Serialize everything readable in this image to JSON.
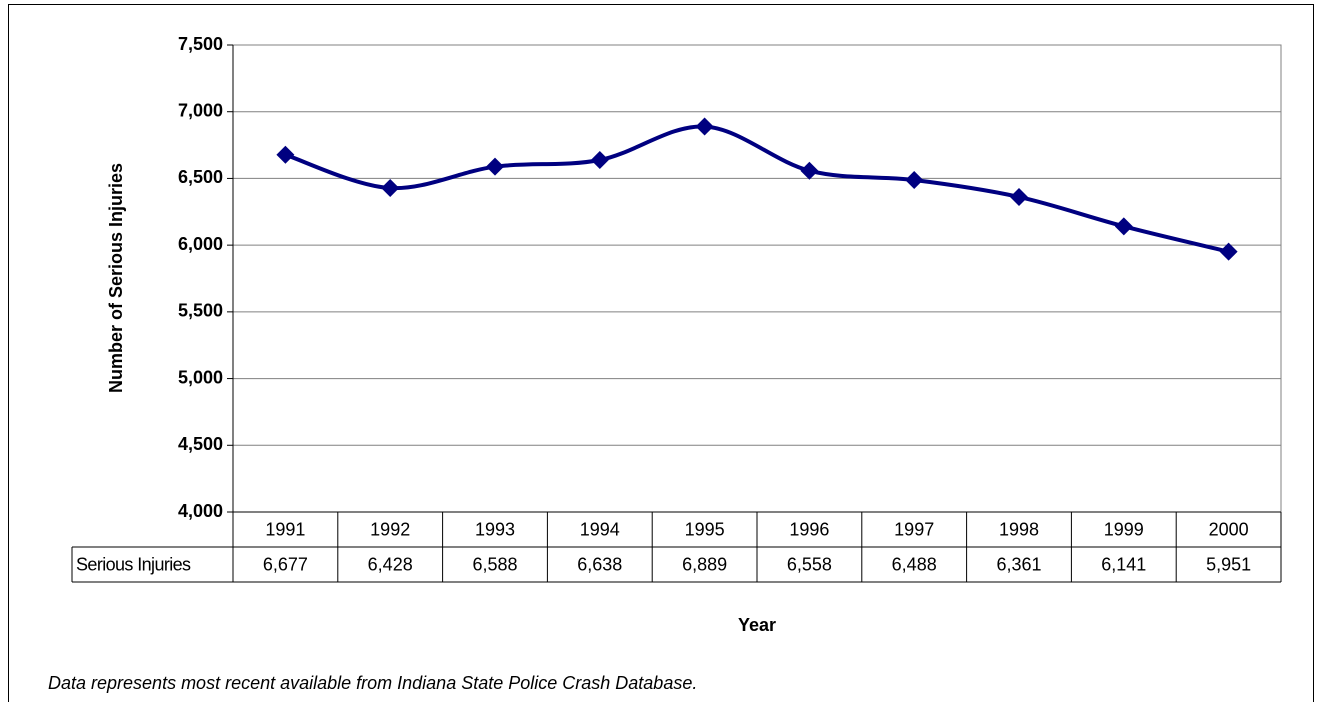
{
  "chart_data": {
    "type": "line",
    "x_label": "Year",
    "y_label": "Number of Serious Injuries",
    "note": "Data represents most recent available from Indiana State Police Crash Database.",
    "categories": [
      "1991",
      "1992",
      "1993",
      "1994",
      "1995",
      "1996",
      "1997",
      "1998",
      "1999",
      "2000"
    ],
    "series": [
      {
        "name": "Serious Injuries",
        "color": "#000080",
        "values": [
          6677,
          6428,
          6588,
          6638,
          6889,
          6558,
          6488,
          6361,
          6141,
          5951
        ],
        "value_labels": [
          "6,677",
          "6,428",
          "6,588",
          "6,638",
          "6,889",
          "6,558",
          "6,488",
          "6,361",
          "6,141",
          "5,951"
        ]
      }
    ],
    "ylim": [
      4000,
      7500
    ],
    "yticks": [
      {
        "value": 4000,
        "label": "4,000"
      },
      {
        "value": 4500,
        "label": "4,500"
      },
      {
        "value": 5000,
        "label": "5,000"
      },
      {
        "value": 5500,
        "label": "5,500"
      },
      {
        "value": 6000,
        "label": "6,000"
      },
      {
        "value": 6500,
        "label": "6,500"
      },
      {
        "value": 7000,
        "label": "7,000"
      },
      {
        "value": 7500,
        "label": "7,500"
      }
    ],
    "grid": true
  }
}
